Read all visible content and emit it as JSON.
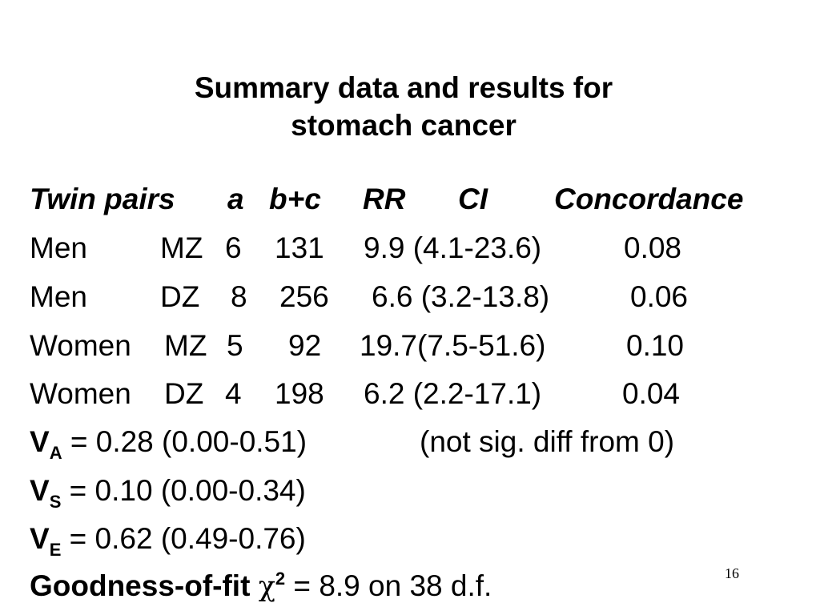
{
  "title": {
    "line1": "Summary data and  results for",
    "line2": "stomach cancer"
  },
  "table": {
    "headers": [
      "Twin pairs",
      "a",
      "b+c",
      "RR",
      "CI",
      "Concordance"
    ],
    "rows": [
      {
        "group": "Men",
        "zyg": "MZ",
        "a": "6",
        "bc": "131",
        "rr_ci": "9.9 (4.1-23.6)",
        "conc": "0.08"
      },
      {
        "group": "Men",
        "zyg": "DZ",
        "a": "8",
        "bc": "256",
        "rr_ci": "6.6 (3.2-13.8)",
        "conc": "0.06"
      },
      {
        "group": "Women",
        "zyg": "MZ",
        "a": "5",
        "bc": "92",
        "rr_ci": "19.7(7.5-51.6)",
        "conc": "0.10"
      },
      {
        "group": "Women",
        "zyg": "DZ",
        "a": "4",
        "bc": "198",
        "rr_ci": "6.2 (2.2-17.1)",
        "conc": "0.04"
      }
    ]
  },
  "estimates": [
    {
      "symbol": "V",
      "subscript": "A",
      "text": " = 0.28 (0.00-0.51)",
      "note": "(not sig. diff from 0)"
    },
    {
      "symbol": "V",
      "subscript": "S",
      "text": " = 0.10 (0.00-0.34)",
      "note": ""
    },
    {
      "symbol": "V",
      "subscript": "E",
      "text": " = 0.62 (0.49-0.76)",
      "note": ""
    }
  ],
  "goodness": {
    "label": "Goodness-of-fit ",
    "symbol": "χ",
    "superscript": "2",
    "text": " = 8.9 on 38 d.f."
  },
  "page_number": "16"
}
